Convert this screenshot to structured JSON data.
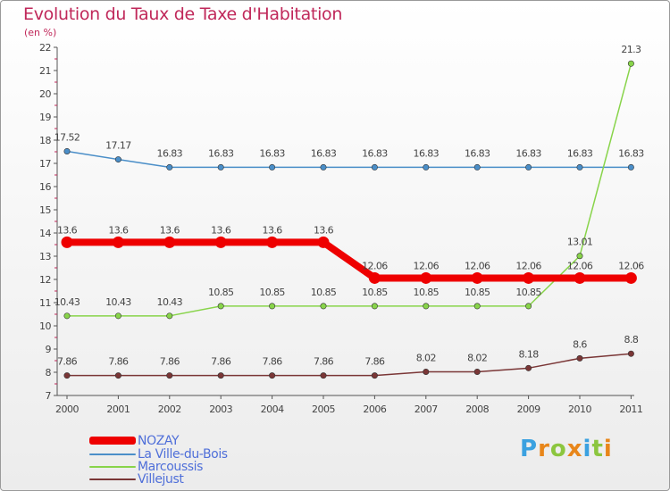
{
  "chart_data": {
    "type": "line",
    "title": "Evolution du Taux de Taxe d'Habitation",
    "subtitle": "(en %)",
    "categories": [
      "2000",
      "2001",
      "2002",
      "2003",
      "2004",
      "2005",
      "2006",
      "2007",
      "2008",
      "2009",
      "2010",
      "2011"
    ],
    "ylim": [
      7,
      22
    ],
    "yticks": [
      "7",
      "8",
      "9",
      "10",
      "11",
      "12",
      "13",
      "14",
      "15",
      "16",
      "17",
      "18",
      "19",
      "20",
      "21",
      "22"
    ],
    "grid": false,
    "series": [
      {
        "name": "NOZAY",
        "color": "#ee0000",
        "values": [
          13.6,
          13.6,
          13.6,
          13.6,
          13.6,
          13.6,
          12.06,
          12.06,
          12.06,
          12.06,
          12.06,
          12.06
        ],
        "labels": [
          "13.6",
          "13.6",
          "13.6",
          "13.6",
          "13.6",
          "13.6",
          "12.06",
          "12.06",
          "12.06",
          "12.06",
          "12.06",
          "12.06"
        ]
      },
      {
        "name": "La Ville-du-Bois",
        "color": "#4a8ec8",
        "values": [
          17.52,
          17.17,
          16.83,
          16.83,
          16.83,
          16.83,
          16.83,
          16.83,
          16.83,
          16.83,
          16.83,
          16.83
        ],
        "labels": [
          "17.52",
          "17.17",
          "16.83",
          "16.83",
          "16.83",
          "16.83",
          "16.83",
          "16.83",
          "16.83",
          "16.83",
          "16.83",
          "16.83"
        ]
      },
      {
        "name": "Marcoussis",
        "color": "#88d44a",
        "values": [
          10.43,
          10.43,
          10.43,
          10.85,
          10.85,
          10.85,
          10.85,
          10.85,
          10.85,
          10.85,
          13.01,
          21.3
        ],
        "labels": [
          "10.43",
          "10.43",
          "10.43",
          "10.85",
          "10.85",
          "10.85",
          "10.85",
          "10.85",
          "10.85",
          "10.85",
          "13.01",
          "21.3"
        ]
      },
      {
        "name": "Villejust",
        "color": "#7a3636",
        "values": [
          7.86,
          7.86,
          7.86,
          7.86,
          7.86,
          7.86,
          7.86,
          8.02,
          8.02,
          8.18,
          8.6,
          8.8
        ],
        "labels": [
          "7.86",
          "7.86",
          "7.86",
          "7.86",
          "7.86",
          "7.86",
          "7.86",
          "8.02",
          "8.02",
          "8.18",
          "8.6",
          "8.8"
        ]
      }
    ]
  },
  "brand": {
    "letters": [
      "P",
      "r",
      "o",
      "x",
      "i",
      "t",
      "i"
    ],
    "colors": [
      "#3ba1e0",
      "#e8861a",
      "#8cc63f",
      "#e8861a",
      "#3ba1e0",
      "#8cc63f",
      "#e8861a"
    ]
  }
}
